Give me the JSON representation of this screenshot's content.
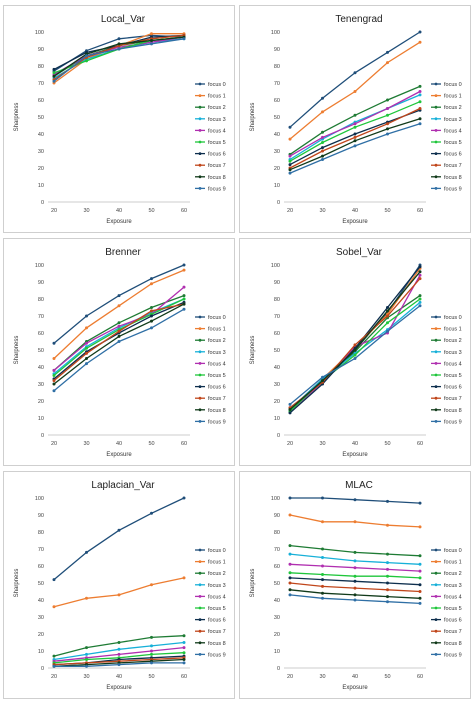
{
  "colors": [
    "#1f4e79",
    "#ed7d31",
    "#1e7b34",
    "#17b0d8",
    "#b02fb0",
    "#1fc63b",
    "#0d2e4d",
    "#c0461b",
    "#113a1a",
    "#2f6fa5"
  ],
  "chart_data": [
    {
      "type": "line",
      "title": "Local_Var",
      "xlabel": "Exposure",
      "ylabel": "Sharpness",
      "x": [
        20,
        30,
        40,
        50,
        60
      ],
      "ylim": [
        0,
        100
      ],
      "yticks": [
        0,
        10,
        20,
        30,
        40,
        50,
        60,
        70,
        80,
        90,
        100
      ],
      "legend": "right",
      "grid": false,
      "series": [
        {
          "name": "focus 0",
          "values": [
            77,
            89,
            96,
            98,
            97
          ]
        },
        {
          "name": "focus 1",
          "values": [
            70,
            84,
            92,
            99,
            99
          ]
        },
        {
          "name": "focus 2",
          "values": [
            74,
            86,
            92,
            95,
            97
          ]
        },
        {
          "name": "focus 3",
          "values": [
            73,
            84,
            90,
            94,
            96
          ]
        },
        {
          "name": "focus 4",
          "values": [
            75,
            86,
            91,
            94,
            97
          ]
        },
        {
          "name": "focus 5",
          "values": [
            76,
            83,
            90,
            95,
            97
          ]
        },
        {
          "name": "focus 6",
          "values": [
            78,
            88,
            92,
            97,
            98
          ]
        },
        {
          "name": "focus 7",
          "values": [
            72,
            85,
            92,
            96,
            98
          ]
        },
        {
          "name": "focus 8",
          "values": [
            74,
            87,
            93,
            95,
            97
          ]
        },
        {
          "name": "focus 9",
          "values": [
            71,
            86,
            90,
            93,
            96
          ]
        }
      ]
    },
    {
      "type": "line",
      "title": "Tenengrad",
      "xlabel": "Exposure",
      "ylabel": "Sharpness",
      "x": [
        20,
        30,
        40,
        50,
        60
      ],
      "ylim": [
        0,
        100
      ],
      "yticks": [
        0,
        10,
        20,
        30,
        40,
        50,
        60,
        70,
        80,
        90,
        100
      ],
      "legend": "right",
      "grid": false,
      "series": [
        {
          "name": "focus 0",
          "values": [
            44,
            61,
            76,
            88,
            100
          ]
        },
        {
          "name": "focus 1",
          "values": [
            37,
            53,
            65,
            82,
            94
          ]
        },
        {
          "name": "focus 2",
          "values": [
            28,
            41,
            51,
            60,
            68
          ]
        },
        {
          "name": "focus 3",
          "values": [
            25,
            37,
            47,
            55,
            63
          ]
        },
        {
          "name": "focus 4",
          "values": [
            27,
            38,
            46,
            55,
            65
          ]
        },
        {
          "name": "focus 5",
          "values": [
            24,
            35,
            44,
            51,
            59
          ]
        },
        {
          "name": "focus 6",
          "values": [
            22,
            32,
            40,
            47,
            54
          ]
        },
        {
          "name": "focus 7",
          "values": [
            20,
            30,
            38,
            46,
            55
          ]
        },
        {
          "name": "focus 8",
          "values": [
            19,
            27,
            36,
            43,
            49
          ]
        },
        {
          "name": "focus 9",
          "values": [
            17,
            25,
            33,
            40,
            46
          ]
        }
      ]
    },
    {
      "type": "line",
      "title": "Brenner",
      "xlabel": "Exposure",
      "ylabel": "Sharpness",
      "x": [
        20,
        30,
        40,
        50,
        60
      ],
      "ylim": [
        0,
        100
      ],
      "yticks": [
        0,
        10,
        20,
        30,
        40,
        50,
        60,
        70,
        80,
        90,
        100
      ],
      "legend": "right",
      "grid": false,
      "series": [
        {
          "name": "focus 0",
          "values": [
            54,
            70,
            82,
            92,
            100
          ]
        },
        {
          "name": "focus 1",
          "values": [
            45,
            63,
            76,
            89,
            97
          ]
        },
        {
          "name": "focus 2",
          "values": [
            38,
            55,
            66,
            75,
            82
          ]
        },
        {
          "name": "focus 3",
          "values": [
            36,
            52,
            63,
            72,
            80
          ]
        },
        {
          "name": "focus 4",
          "values": [
            38,
            54,
            64,
            71,
            87
          ]
        },
        {
          "name": "focus 5",
          "values": [
            35,
            51,
            62,
            71,
            80
          ]
        },
        {
          "name": "focus 6",
          "values": [
            33,
            49,
            60,
            70,
            78
          ]
        },
        {
          "name": "focus 7",
          "values": [
            32,
            48,
            61,
            73,
            77
          ]
        },
        {
          "name": "focus 8",
          "values": [
            30,
            45,
            58,
            67,
            77
          ]
        },
        {
          "name": "focus 9",
          "values": [
            26,
            42,
            55,
            63,
            74
          ]
        }
      ]
    },
    {
      "type": "line",
      "title": "Sobel_Var",
      "xlabel": "Exposure",
      "ylabel": "Sharpness",
      "x": [
        20,
        30,
        40,
        50,
        60
      ],
      "ylim": [
        0,
        100
      ],
      "yticks": [
        0,
        10,
        20,
        30,
        40,
        50,
        60,
        70,
        80,
        90,
        100
      ],
      "legend": "right",
      "grid": false,
      "series": [
        {
          "name": "focus 0",
          "values": [
            16,
            31,
            50,
            72,
            100
          ]
        },
        {
          "name": "focus 1",
          "values": [
            15,
            33,
            51,
            71,
            98
          ]
        },
        {
          "name": "focus 2",
          "values": [
            14,
            32,
            49,
            69,
            82
          ]
        },
        {
          "name": "focus 3",
          "values": [
            15,
            33,
            48,
            62,
            78
          ]
        },
        {
          "name": "focus 4",
          "values": [
            14,
            31,
            52,
            60,
            94
          ]
        },
        {
          "name": "focus 5",
          "values": [
            14,
            32,
            47,
            66,
            80
          ]
        },
        {
          "name": "focus 6",
          "values": [
            13,
            30,
            51,
            75,
            99
          ]
        },
        {
          "name": "focus 7",
          "values": [
            16,
            31,
            53,
            70,
            92
          ]
        },
        {
          "name": "focus 8",
          "values": [
            15,
            32,
            50,
            73,
            96
          ]
        },
        {
          "name": "focus 9",
          "values": [
            18,
            34,
            45,
            61,
            76
          ]
        }
      ]
    },
    {
      "type": "line",
      "title": "Laplacian_Var",
      "xlabel": "Exposure",
      "ylabel": "Sharpness",
      "x": [
        20,
        30,
        40,
        50,
        60
      ],
      "ylim": [
        0,
        100
      ],
      "yticks": [
        0,
        10,
        20,
        30,
        40,
        50,
        60,
        70,
        80,
        90,
        100
      ],
      "legend": "right",
      "grid": false,
      "series": [
        {
          "name": "focus 0",
          "values": [
            52,
            68,
            81,
            91,
            100
          ]
        },
        {
          "name": "focus 1",
          "values": [
            36,
            41,
            43,
            49,
            53
          ]
        },
        {
          "name": "focus 2",
          "values": [
            7,
            12,
            15,
            18,
            19
          ]
        },
        {
          "name": "focus 3",
          "values": [
            5,
            8,
            11,
            13,
            15
          ]
        },
        {
          "name": "focus 4",
          "values": [
            4,
            6,
            8,
            10,
            12
          ]
        },
        {
          "name": "focus 5",
          "values": [
            3,
            5,
            6,
            8,
            9
          ]
        },
        {
          "name": "focus 6",
          "values": [
            2,
            3,
            5,
            6,
            7
          ]
        },
        {
          "name": "focus 7",
          "values": [
            2,
            3,
            4,
            5,
            6
          ]
        },
        {
          "name": "focus 8",
          "values": [
            1,
            2,
            3,
            4,
            5
          ]
        },
        {
          "name": "focus 9",
          "values": [
            1,
            1,
            2,
            3,
            3
          ]
        }
      ]
    },
    {
      "type": "line",
      "title": "MLAC",
      "xlabel": "Exposure",
      "ylabel": "Sharpness",
      "x": [
        20,
        30,
        40,
        50,
        60
      ],
      "ylim": [
        0,
        100
      ],
      "yticks": [
        0,
        10,
        20,
        30,
        40,
        50,
        60,
        70,
        80,
        90,
        100
      ],
      "legend": "right",
      "grid": false,
      "series": [
        {
          "name": "focus 0",
          "values": [
            100,
            100,
            99,
            98,
            97
          ]
        },
        {
          "name": "focus 1",
          "values": [
            90,
            86,
            86,
            84,
            83
          ]
        },
        {
          "name": "focus 2",
          "values": [
            72,
            70,
            68,
            67,
            66
          ]
        },
        {
          "name": "focus 3",
          "values": [
            67,
            65,
            63,
            62,
            61
          ]
        },
        {
          "name": "focus 4",
          "values": [
            61,
            60,
            59,
            58,
            57
          ]
        },
        {
          "name": "focus 5",
          "values": [
            56,
            55,
            54,
            54,
            53
          ]
        },
        {
          "name": "focus 6",
          "values": [
            53,
            52,
            51,
            50,
            49
          ]
        },
        {
          "name": "focus 7",
          "values": [
            50,
            48,
            47,
            46,
            45
          ]
        },
        {
          "name": "focus 8",
          "values": [
            46,
            44,
            43,
            42,
            41
          ]
        },
        {
          "name": "focus 9",
          "values": [
            43,
            41,
            40,
            39,
            38
          ]
        }
      ]
    }
  ]
}
